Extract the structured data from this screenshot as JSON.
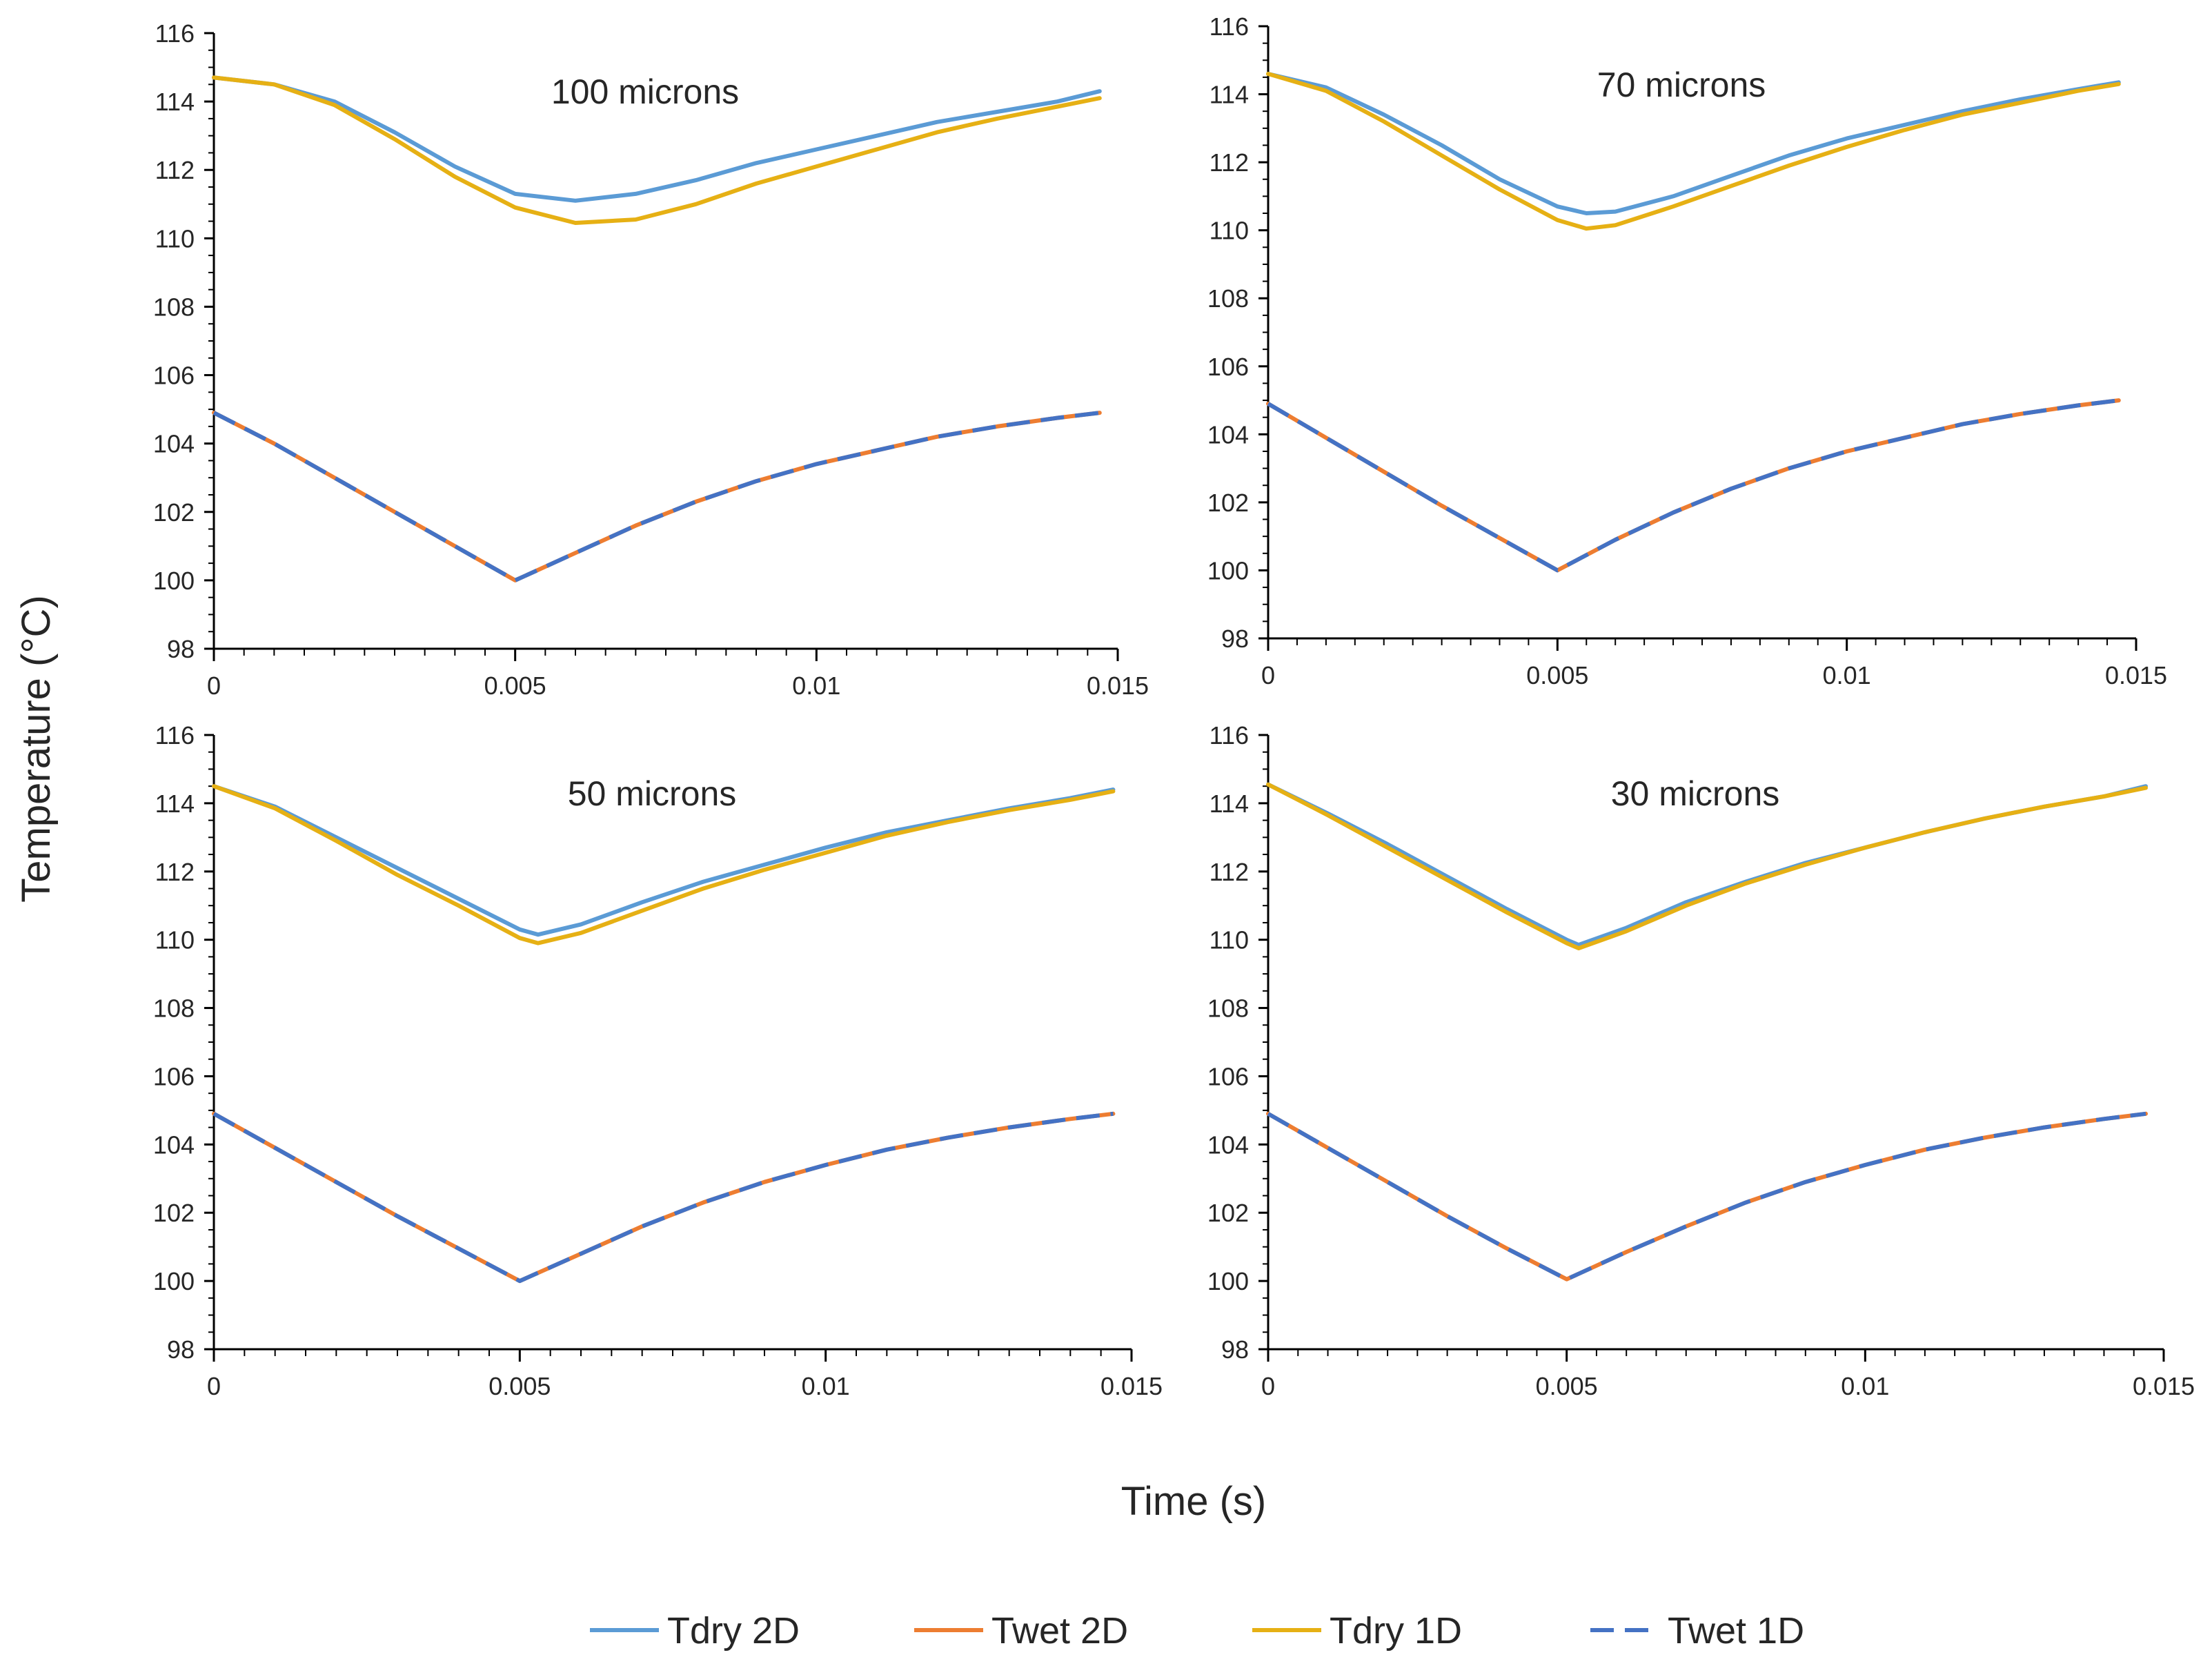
{
  "chart_data": {
    "type": "line",
    "ylabel": "Temperature (°C)",
    "xlabel": "Time (s)",
    "xlim": [
      0,
      0.015
    ],
    "ylim": [
      98,
      116
    ],
    "xticks": [
      "0",
      "0.005",
      "0.01",
      "0.015"
    ],
    "yticks": [
      "98",
      "100",
      "102",
      "104",
      "106",
      "108",
      "110",
      "112",
      "114",
      "116"
    ],
    "legend_position": "bottom",
    "series_styles": [
      {
        "name": "Tdry 2D",
        "color": "#5b9bd5",
        "dash": "solid"
      },
      {
        "name": "Twet 2D",
        "color": "#ed7d31",
        "dash": "solid"
      },
      {
        "name": "Tdry 1D",
        "color": "#e6b014",
        "dash": "solid"
      },
      {
        "name": "Twet 1D",
        "color": "#4472c4",
        "dash": "dashed"
      }
    ],
    "panels": [
      {
        "title": "100 microns",
        "series": [
          {
            "name": "Tdry 2D",
            "x": [
              0,
              0.001,
              0.002,
              0.003,
              0.004,
              0.005,
              0.006,
              0.007,
              0.008,
              0.009,
              0.01,
              0.011,
              0.012,
              0.013,
              0.014,
              0.0147
            ],
            "values": [
              114.7,
              114.5,
              114.0,
              113.1,
              112.1,
              111.3,
              111.1,
              111.3,
              111.7,
              112.2,
              112.6,
              113.0,
              113.4,
              113.7,
              114.0,
              114.3
            ]
          },
          {
            "name": "Twet 2D",
            "x": [
              0,
              0.001,
              0.002,
              0.003,
              0.004,
              0.005,
              0.006,
              0.007,
              0.008,
              0.009,
              0.01,
              0.011,
              0.012,
              0.013,
              0.014,
              0.0147
            ],
            "values": [
              104.9,
              104.0,
              103.0,
              102.0,
              101.0,
              100.0,
              100.8,
              101.6,
              102.3,
              102.9,
              103.4,
              103.8,
              104.2,
              104.5,
              104.75,
              104.9
            ]
          },
          {
            "name": "Tdry 1D",
            "x": [
              0,
              0.001,
              0.002,
              0.003,
              0.004,
              0.005,
              0.006,
              0.007,
              0.008,
              0.009,
              0.01,
              0.011,
              0.012,
              0.013,
              0.014,
              0.0147
            ],
            "values": [
              114.7,
              114.5,
              113.9,
              112.9,
              111.8,
              110.9,
              110.45,
              110.55,
              111.0,
              111.6,
              112.1,
              112.6,
              113.1,
              113.5,
              113.85,
              114.1
            ]
          },
          {
            "name": "Twet 1D",
            "x": [
              0,
              0.001,
              0.002,
              0.003,
              0.004,
              0.005,
              0.006,
              0.007,
              0.008,
              0.009,
              0.01,
              0.011,
              0.012,
              0.013,
              0.014,
              0.0147
            ],
            "values": [
              104.9,
              104.0,
              103.0,
              102.0,
              101.0,
              100.0,
              100.8,
              101.6,
              102.3,
              102.9,
              103.4,
              103.8,
              104.2,
              104.5,
              104.75,
              104.9
            ]
          }
        ]
      },
      {
        "title": "70 microns",
        "series": [
          {
            "name": "Tdry 2D",
            "x": [
              0,
              0.001,
              0.002,
              0.003,
              0.004,
              0.005,
              0.0055,
              0.006,
              0.007,
              0.008,
              0.009,
              0.01,
              0.011,
              0.012,
              0.013,
              0.014,
              0.0147
            ],
            "values": [
              114.6,
              114.2,
              113.4,
              112.5,
              111.5,
              110.7,
              110.5,
              110.55,
              111.0,
              111.6,
              112.2,
              112.7,
              113.1,
              113.5,
              113.85,
              114.15,
              114.35
            ]
          },
          {
            "name": "Twet 2D",
            "x": [
              0,
              0.001,
              0.002,
              0.003,
              0.004,
              0.005,
              0.006,
              0.007,
              0.008,
              0.009,
              0.01,
              0.011,
              0.012,
              0.013,
              0.014,
              0.0147
            ],
            "values": [
              104.9,
              103.9,
              102.9,
              101.9,
              100.95,
              100.0,
              100.9,
              101.7,
              102.4,
              103.0,
              103.5,
              103.9,
              104.3,
              104.6,
              104.85,
              105.0
            ]
          },
          {
            "name": "Tdry 1D",
            "x": [
              0,
              0.001,
              0.002,
              0.003,
              0.004,
              0.005,
              0.0055,
              0.006,
              0.007,
              0.008,
              0.009,
              0.01,
              0.011,
              0.012,
              0.013,
              0.014,
              0.0147
            ],
            "values": [
              114.6,
              114.1,
              113.2,
              112.2,
              111.2,
              110.3,
              110.05,
              110.15,
              110.7,
              111.3,
              111.9,
              112.45,
              112.95,
              113.4,
              113.75,
              114.1,
              114.3
            ]
          },
          {
            "name": "Twet 1D",
            "x": [
              0,
              0.001,
              0.002,
              0.003,
              0.004,
              0.005,
              0.006,
              0.007,
              0.008,
              0.009,
              0.01,
              0.011,
              0.012,
              0.013,
              0.014,
              0.0147
            ],
            "values": [
              104.9,
              103.9,
              102.9,
              101.9,
              100.95,
              100.0,
              100.9,
              101.7,
              102.4,
              103.0,
              103.5,
              103.9,
              104.3,
              104.6,
              104.85,
              105.0
            ]
          }
        ]
      },
      {
        "title": "50 microns",
        "series": [
          {
            "name": "Tdry 2D",
            "x": [
              0,
              0.001,
              0.002,
              0.003,
              0.004,
              0.005,
              0.0053,
              0.006,
              0.007,
              0.008,
              0.009,
              0.01,
              0.011,
              0.012,
              0.013,
              0.014,
              0.0147
            ],
            "values": [
              114.5,
              113.9,
              113.0,
              112.1,
              111.2,
              110.3,
              110.15,
              110.45,
              111.1,
              111.7,
              112.2,
              112.7,
              113.15,
              113.5,
              113.85,
              114.15,
              114.4
            ]
          },
          {
            "name": "Twet 2D",
            "x": [
              0,
              0.001,
              0.002,
              0.003,
              0.004,
              0.005,
              0.006,
              0.007,
              0.008,
              0.009,
              0.01,
              0.011,
              0.012,
              0.013,
              0.014,
              0.0147
            ],
            "values": [
              104.9,
              103.9,
              102.9,
              101.9,
              100.95,
              100.0,
              100.8,
              101.6,
              102.3,
              102.9,
              103.4,
              103.85,
              104.2,
              104.5,
              104.75,
              104.9
            ]
          },
          {
            "name": "Tdry 1D",
            "x": [
              0,
              0.001,
              0.002,
              0.003,
              0.004,
              0.005,
              0.0053,
              0.006,
              0.007,
              0.008,
              0.009,
              0.01,
              0.011,
              0.012,
              0.013,
              0.014,
              0.0147
            ],
            "values": [
              114.5,
              113.85,
              112.9,
              111.9,
              111.0,
              110.05,
              109.9,
              110.2,
              110.85,
              111.5,
              112.05,
              112.55,
              113.05,
              113.45,
              113.8,
              114.1,
              114.35
            ]
          },
          {
            "name": "Twet 1D",
            "x": [
              0,
              0.001,
              0.002,
              0.003,
              0.004,
              0.005,
              0.006,
              0.007,
              0.008,
              0.009,
              0.01,
              0.011,
              0.012,
              0.013,
              0.014,
              0.0147
            ],
            "values": [
              104.9,
              103.9,
              102.9,
              101.9,
              100.95,
              100.0,
              100.8,
              101.6,
              102.3,
              102.9,
              103.4,
              103.85,
              104.2,
              104.5,
              104.75,
              104.9
            ]
          }
        ]
      },
      {
        "title": "30 microns",
        "series": [
          {
            "name": "Tdry 2D",
            "x": [
              0,
              0.001,
              0.002,
              0.003,
              0.004,
              0.005,
              0.0052,
              0.006,
              0.007,
              0.008,
              0.009,
              0.01,
              0.011,
              0.012,
              0.013,
              0.014,
              0.0147
            ],
            "values": [
              114.55,
              113.7,
              112.8,
              111.85,
              110.9,
              110.0,
              109.85,
              110.35,
              111.1,
              111.7,
              112.25,
              112.7,
              113.15,
              113.55,
              113.9,
              114.2,
              114.5
            ]
          },
          {
            "name": "Twet 2D",
            "x": [
              0,
              0.001,
              0.002,
              0.003,
              0.004,
              0.005,
              0.006,
              0.007,
              0.008,
              0.009,
              0.01,
              0.011,
              0.012,
              0.013,
              0.014,
              0.0147
            ],
            "values": [
              104.9,
              103.9,
              102.9,
              101.9,
              100.95,
              100.05,
              100.85,
              101.6,
              102.3,
              102.9,
              103.4,
              103.85,
              104.2,
              104.5,
              104.75,
              104.9
            ]
          },
          {
            "name": "Tdry 1D",
            "x": [
              0,
              0.001,
              0.002,
              0.003,
              0.004,
              0.005,
              0.0052,
              0.006,
              0.007,
              0.008,
              0.009,
              0.01,
              0.011,
              0.012,
              0.013,
              0.014,
              0.0147
            ],
            "values": [
              114.55,
              113.65,
              112.7,
              111.75,
              110.8,
              109.9,
              109.75,
              110.25,
              111.0,
              111.65,
              112.2,
              112.7,
              113.15,
              113.55,
              113.9,
              114.2,
              114.45
            ]
          },
          {
            "name": "Twet 1D",
            "x": [
              0,
              0.001,
              0.002,
              0.003,
              0.004,
              0.005,
              0.006,
              0.007,
              0.008,
              0.009,
              0.01,
              0.011,
              0.012,
              0.013,
              0.014,
              0.0147
            ],
            "values": [
              104.9,
              103.9,
              102.9,
              101.9,
              100.95,
              100.05,
              100.85,
              101.6,
              102.3,
              102.9,
              103.4,
              103.85,
              104.2,
              104.5,
              104.75,
              104.9
            ]
          }
        ]
      }
    ]
  }
}
